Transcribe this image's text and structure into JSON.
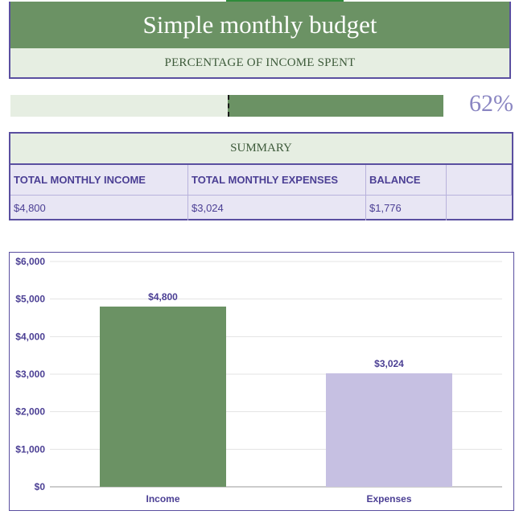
{
  "header": {
    "title": "Simple monthly budget",
    "subtitle": "PERCENTAGE OF INCOME SPENT"
  },
  "progress": {
    "value_percent": 62,
    "label": "62%"
  },
  "summary": {
    "title": "SUMMARY",
    "columns": [
      "TOTAL MONTHLY INCOME",
      "TOTAL MONTHLY EXPENSES",
      "BALANCE",
      ""
    ],
    "values": [
      "$4,800",
      "$3,024",
      "$1,776",
      ""
    ]
  },
  "colors": {
    "accent_green": "#6b9264",
    "light_green": "#e6eee2",
    "purple_text": "#4b3f94",
    "lavender_bar": "#c6c0e2",
    "border_purple": "#5a4fa0"
  },
  "chart_data": {
    "type": "bar",
    "categories": [
      "Income",
      "Expenses"
    ],
    "values": [
      4800,
      3024
    ],
    "value_labels": [
      "$4,800",
      "$3,024"
    ],
    "bar_colors": [
      "#6b9264",
      "#c6c0e2"
    ],
    "ylim": [
      0,
      6000
    ],
    "yticks": [
      0,
      1000,
      2000,
      3000,
      4000,
      5000,
      6000
    ],
    "ytick_labels": [
      "$0",
      "$1,000",
      "$2,000",
      "$3,000",
      "$4,000",
      "$5,000",
      "$6,000"
    ],
    "grid": true,
    "legend": "none"
  }
}
